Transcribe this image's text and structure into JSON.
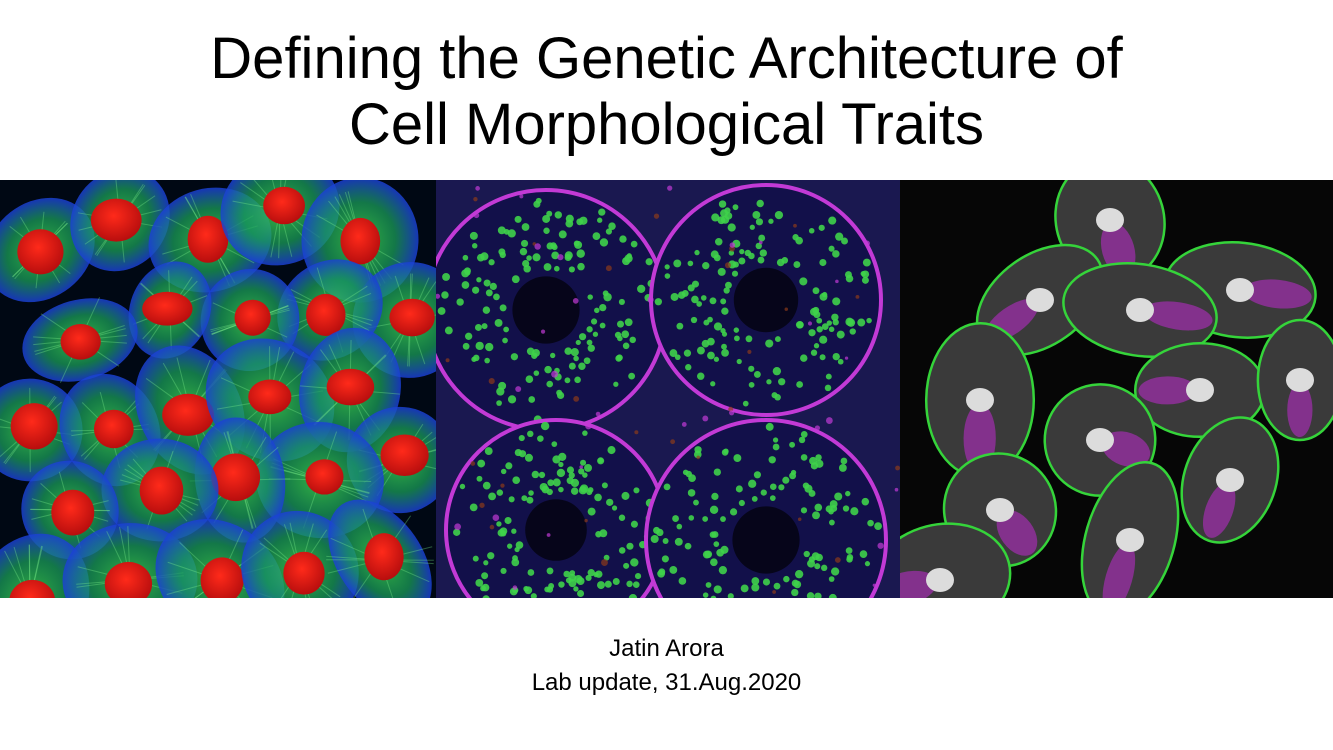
{
  "slide": {
    "title_line1": "Defining the Genetic Architecture of",
    "title_line2": "Cell Morphological Traits",
    "author": "Jatin Arora",
    "subtitle": "Lab update, 31.Aug.2020"
  },
  "images": [
    {
      "name": "microscopy-cells-red-nuclei"
    },
    {
      "name": "microscopy-tissue-section"
    },
    {
      "name": "microscopy-cells-gray-nuclei"
    }
  ]
}
